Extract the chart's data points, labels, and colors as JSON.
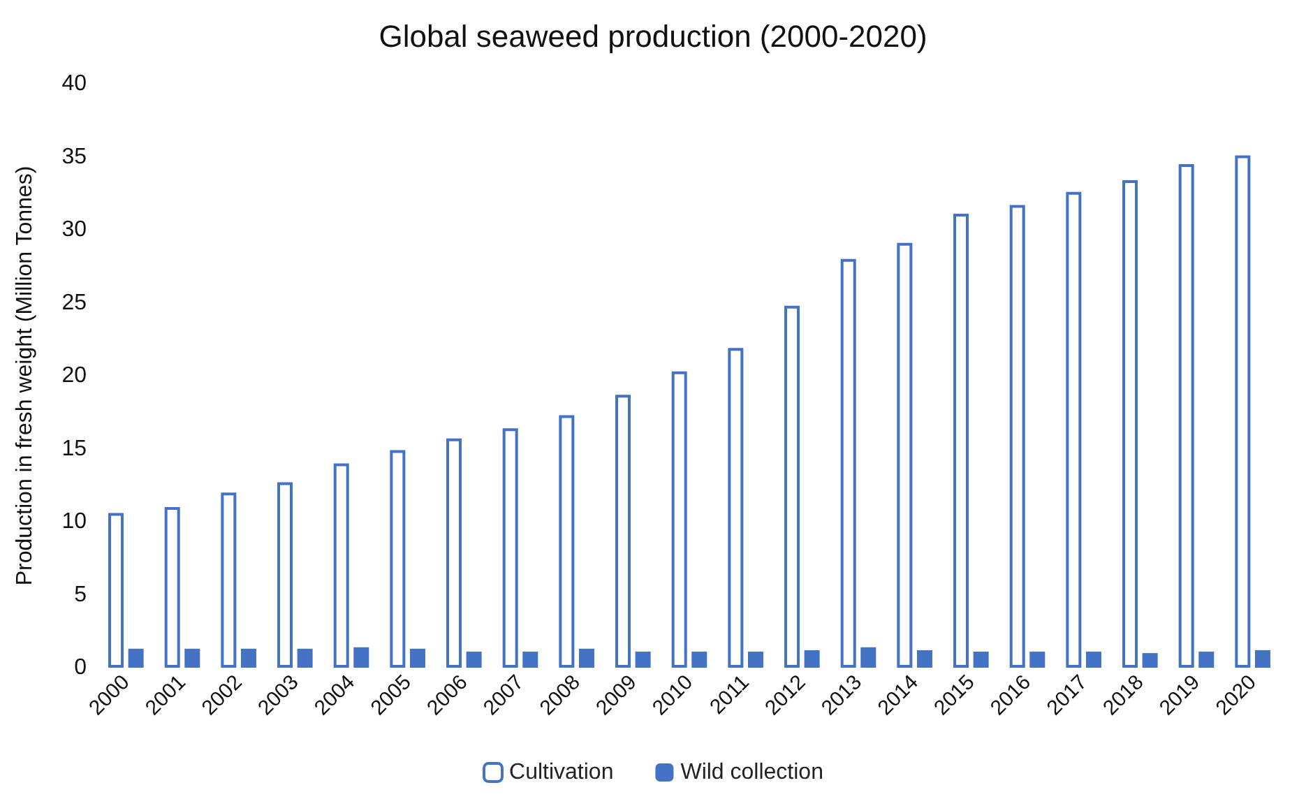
{
  "chart_data": {
    "type": "bar",
    "title": "Global seaweed production (2000-2020)",
    "ylabel": "Production in fresh weight (Million Tonnes)",
    "categories": [
      "2000",
      "2001",
      "2002",
      "2003",
      "2004",
      "2005",
      "2006",
      "2007",
      "2008",
      "2009",
      "2010",
      "2011",
      "2012",
      "2013",
      "2014",
      "2015",
      "2016",
      "2017",
      "2018",
      "2019",
      "2020"
    ],
    "series": [
      {
        "name": "Cultivation",
        "color": "#4472c4",
        "values": [
          10.6,
          11.0,
          12.0,
          12.7,
          14.0,
          14.9,
          15.7,
          16.4,
          17.3,
          18.7,
          20.3,
          21.9,
          24.8,
          28.0,
          29.1,
          31.1,
          31.7,
          32.6,
          33.4,
          34.5,
          35.1
        ]
      },
      {
        "name": "Wild collection",
        "color": "#4472c4",
        "values": [
          1.3,
          1.3,
          1.3,
          1.3,
          1.4,
          1.3,
          1.1,
          1.1,
          1.3,
          1.1,
          1.1,
          1.1,
          1.2,
          1.4,
          1.2,
          1.1,
          1.1,
          1.1,
          1.0,
          1.1,
          1.2
        ]
      }
    ],
    "ylim": [
      0,
      40
    ],
    "yticks": [
      0,
      5,
      10,
      15,
      20,
      25,
      30,
      35,
      40
    ],
    "grid": false,
    "legend": "bottom"
  }
}
